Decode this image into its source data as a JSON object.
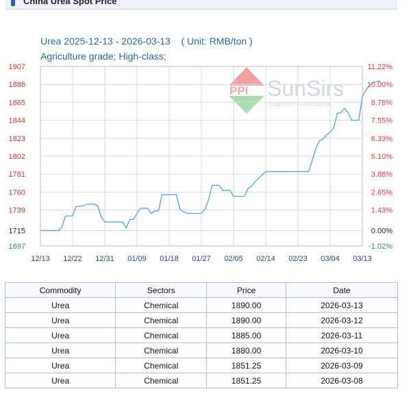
{
  "panel": {
    "title": "China Urea Spot Price"
  },
  "watermark": {
    "logo_text": "PPI",
    "brand": "SunSirs",
    "tagline": "COMMODITY DATA GROUP"
  },
  "colors": {
    "line": "#5aa8dc",
    "left_axis": "#c0392b",
    "right_axis": "#e23b3b",
    "title": "#2a6a9c",
    "grid": "#d9d9d9"
  },
  "chart_data": {
    "type": "line",
    "title": "Urea 2025-12-13 - 2026-03-13    ( Unit: RMB/ton )",
    "subtitle": "Agriculture grade; High-class;",
    "ylim": [
      1697,
      1907
    ],
    "y_ticks": [
      "1907",
      "1886",
      "1865",
      "1844",
      "1823",
      "1802",
      "1781",
      "1760",
      "1739",
      "1715",
      "1697"
    ],
    "y2_ticks": [
      "11.22%",
      "10.00%",
      "8.78%",
      "7.55%",
      "6.33%",
      "5.10%",
      "3.88%",
      "2.65%",
      "1.43%",
      "0.00%",
      "-1.02%"
    ],
    "x_ticks": [
      "12/13",
      "12/22",
      "12/31",
      "01/09",
      "01/18",
      "01/27",
      "02/05",
      "02/14",
      "02/23",
      "03/04",
      "03/13"
    ],
    "x_range_days": 90,
    "series": [
      {
        "points": [
          [
            0,
            1715
          ],
          [
            5,
            1715
          ],
          [
            6,
            1719
          ],
          [
            7,
            1732
          ],
          [
            9,
            1732
          ],
          [
            10,
            1743
          ],
          [
            12,
            1744
          ],
          [
            13,
            1746
          ],
          [
            15,
            1746
          ],
          [
            16,
            1744
          ],
          [
            17,
            1731
          ],
          [
            18,
            1725
          ],
          [
            20,
            1725
          ],
          [
            23,
            1725
          ],
          [
            24,
            1718
          ],
          [
            25,
            1728
          ],
          [
            26,
            1728
          ],
          [
            27,
            1735
          ],
          [
            28,
            1741
          ],
          [
            30,
            1741
          ],
          [
            31,
            1735
          ],
          [
            32,
            1738
          ],
          [
            33,
            1738
          ],
          [
            34,
            1757
          ],
          [
            38,
            1757
          ],
          [
            39,
            1740
          ],
          [
            40,
            1737
          ],
          [
            41,
            1735
          ],
          [
            42,
            1735
          ],
          [
            45,
            1735
          ],
          [
            46,
            1740
          ],
          [
            47,
            1751
          ],
          [
            48,
            1768
          ],
          [
            50,
            1768
          ],
          [
            51,
            1762
          ],
          [
            53,
            1762
          ],
          [
            54,
            1755
          ],
          [
            57,
            1755
          ],
          [
            58,
            1764
          ],
          [
            59,
            1767
          ],
          [
            60,
            1772
          ],
          [
            61,
            1776
          ],
          [
            62,
            1780
          ],
          [
            63,
            1784
          ],
          [
            66,
            1784
          ],
          [
            75,
            1784
          ],
          [
            77,
            1811
          ],
          [
            78,
            1820
          ],
          [
            79,
            1822
          ],
          [
            80,
            1827
          ],
          [
            81,
            1830
          ],
          [
            82,
            1835
          ],
          [
            83,
            1852
          ],
          [
            84,
            1853
          ],
          [
            85,
            1858
          ],
          [
            86,
            1853
          ],
          [
            87,
            1844
          ],
          [
            88,
            1844
          ],
          [
            89,
            1844
          ],
          [
            90,
            1872
          ],
          [
            91,
            1879
          ],
          [
            92,
            1885
          ],
          [
            93,
            1888
          ],
          [
            95,
            1890
          ]
        ]
      }
    ]
  },
  "table": {
    "headers": [
      "Commodity",
      "Sectors",
      "Price",
      "Date"
    ],
    "rows": [
      [
        "Urea",
        "Chemical",
        "1890.00",
        "2026-03-13"
      ],
      [
        "Urea",
        "Chemical",
        "1890.00",
        "2026-03-12"
      ],
      [
        "Urea",
        "Chemical",
        "1885.00",
        "2026-03-11"
      ],
      [
        "Urea",
        "Chemical",
        "1880.00",
        "2026-03-10"
      ],
      [
        "Urea",
        "Chemical",
        "1851.25",
        "2026-03-09"
      ],
      [
        "Urea",
        "Chemical",
        "1851.25",
        "2026-03-08"
      ]
    ]
  }
}
